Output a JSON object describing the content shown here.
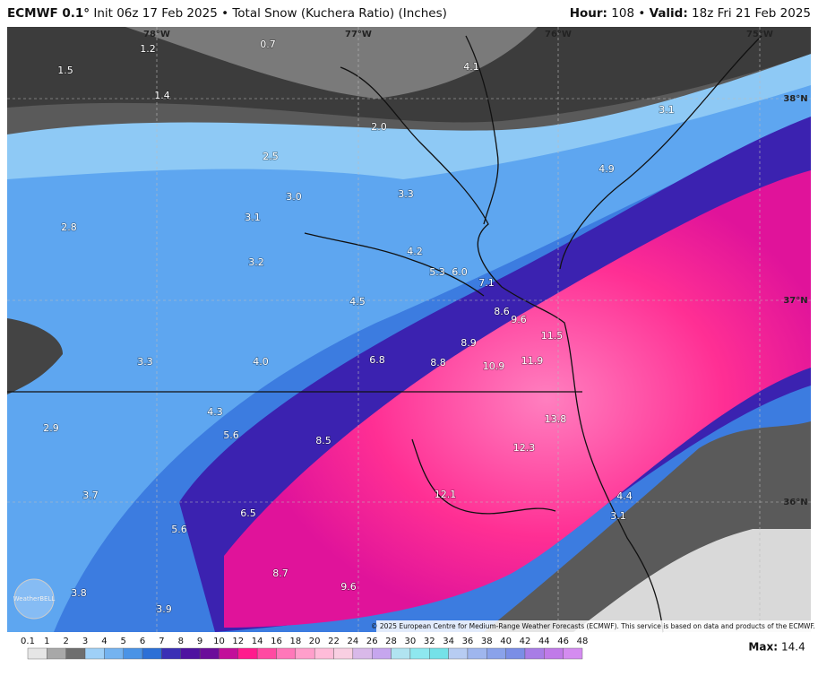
{
  "header": {
    "model": "ECMWF 0.1°",
    "details": "Init 06z 17 Feb 2025 • Total Snow (Kuchera Ratio) (Inches)",
    "hour_label": "Hour:",
    "hour": "108",
    "separator": "•",
    "valid_label": "Valid:",
    "valid": "18z Fri 21 Feb 2025"
  },
  "map": {
    "longitudes": [
      "78°W",
      "77°W",
      "76°W",
      "75°W"
    ],
    "latitudes": [
      "38°N",
      "37°N",
      "36°N"
    ],
    "labels": [
      "1.2",
      "0.7",
      "1.5",
      "1.4",
      "4.1",
      "2.0",
      "3.1",
      "2.5",
      "4.9",
      "3.3",
      "3.0",
      "3.1",
      "2.8",
      "4.2",
      "3.2",
      "5.3",
      "6.0",
      "7.1",
      "4.5",
      "8.6",
      "9.6",
      "11.5",
      "8.9",
      "3.3",
      "4.0",
      "6.8",
      "8.8",
      "10.9",
      "11.9",
      "4.3",
      "13.8",
      "2.9",
      "5.6",
      "8.5",
      "12.3",
      "12.1",
      "4.4",
      "3.7",
      "6.5",
      "3.1",
      "5.6",
      "8.7",
      "9.6",
      "3.8",
      "3.9"
    ],
    "logo": "WeatherBELL",
    "copyright": "© 2025 European Centre for Medium-Range Weather Forecasts (ECMWF). This service is based on data and products of the ECMWF."
  },
  "legend": {
    "ticks": [
      0.1,
      1,
      2,
      3,
      4,
      5,
      6,
      7,
      8,
      9,
      10,
      12,
      14,
      16,
      18,
      20,
      22,
      24,
      26,
      28,
      30,
      32,
      34,
      36,
      38,
      40,
      42,
      44,
      46,
      48
    ],
    "colors": [
      "#e6e6e6",
      "#a8a8a8",
      "#6e6e6e",
      "#9fd0f7",
      "#74b3f0",
      "#4a93e6",
      "#2c6fd6",
      "#3a2fb5",
      "#4e12a0",
      "#6b0d9a",
      "#c20f9a",
      "#ff1b8d",
      "#ff4aa2",
      "#ff77b9",
      "#ff9fcb",
      "#ffbcd9",
      "#f9cfe2",
      "#d9b9e9",
      "#c6a6ee",
      "#b1e4f1",
      "#8ee8ef",
      "#74e1e8",
      "#b7ccf2",
      "#9fb6ee",
      "#8aa2ea",
      "#7b8ee6",
      "#a87de6",
      "#c07ae8",
      "#d48cf0"
    ],
    "max_label": "Max:",
    "max": "14.4"
  }
}
